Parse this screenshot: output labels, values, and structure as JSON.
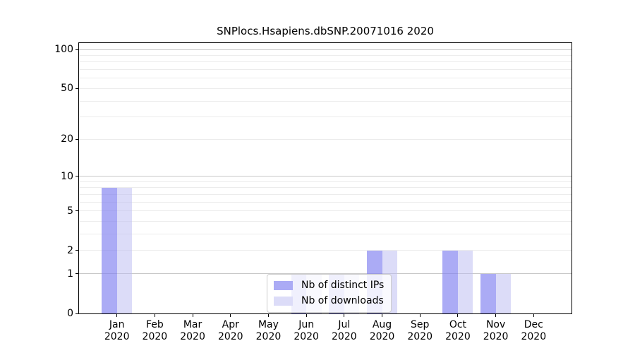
{
  "chart_data": {
    "type": "bar",
    "title": "SNPlocs.Hsapiens.dbSNP.20071016 2020",
    "categories": [
      {
        "month": "Jan",
        "year": "2020"
      },
      {
        "month": "Feb",
        "year": "2020"
      },
      {
        "month": "Mar",
        "year": "2020"
      },
      {
        "month": "Apr",
        "year": "2020"
      },
      {
        "month": "May",
        "year": "2020"
      },
      {
        "month": "Jun",
        "year": "2020"
      },
      {
        "month": "Jul",
        "year": "2020"
      },
      {
        "month": "Aug",
        "year": "2020"
      },
      {
        "month": "Sep",
        "year": "2020"
      },
      {
        "month": "Oct",
        "year": "2020"
      },
      {
        "month": "Nov",
        "year": "2020"
      },
      {
        "month": "Dec",
        "year": "2020"
      }
    ],
    "series": [
      {
        "name": "Nb of distinct IPs",
        "color": "rgba(126,126,240,0.65)",
        "legend_color": "#ababf5",
        "values": [
          8,
          0,
          0,
          0,
          0,
          1,
          1,
          2,
          0,
          2,
          1,
          0
        ]
      },
      {
        "name": "Nb of downloads",
        "color": "rgba(185,185,241,0.5)",
        "legend_color": "#dcdcf8",
        "values": [
          8,
          0,
          0,
          0,
          0,
          1,
          1,
          2,
          0,
          2,
          1,
          0
        ]
      }
    ],
    "y_axis": {
      "ticks": [
        100,
        50,
        20,
        10,
        5,
        2,
        1,
        0
      ],
      "scale": "log10(value+1)",
      "range": [
        0,
        112
      ]
    },
    "x_axis": {
      "ticks_are_month_centers": true
    },
    "gridlines": {
      "major": [
        1,
        10,
        100
      ],
      "minor": [
        2,
        3,
        4,
        5,
        6,
        7,
        8,
        9,
        20,
        30,
        40,
        50,
        60,
        70,
        80,
        90
      ],
      "major_color": "#c8c8c8",
      "minor_color": "#ececec"
    },
    "legend": {
      "position": "bottom-center-inside"
    },
    "frame_color": "#000000",
    "background_color": "#ffffff"
  }
}
